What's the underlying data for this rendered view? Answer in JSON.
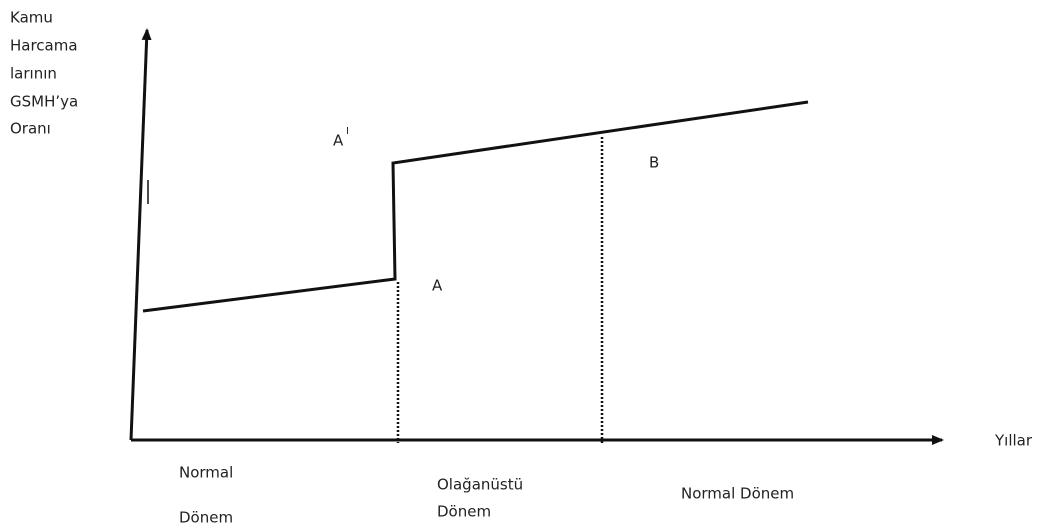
{
  "axis": {
    "y_label": [
      "Kamu",
      "Harcama",
      "larının",
      "GSMH’ya",
      "Oranı"
    ],
    "x_label": "Yıllar"
  },
  "points": {
    "a_prime": {
      "label": "A",
      "superscript": "I"
    },
    "b": "B",
    "a": "A"
  },
  "periods": {
    "first": [
      "Normal",
      "Dönem"
    ],
    "second": [
      "Olağanüstü",
      "Dönem"
    ],
    "third": "Normal Dönem"
  }
}
